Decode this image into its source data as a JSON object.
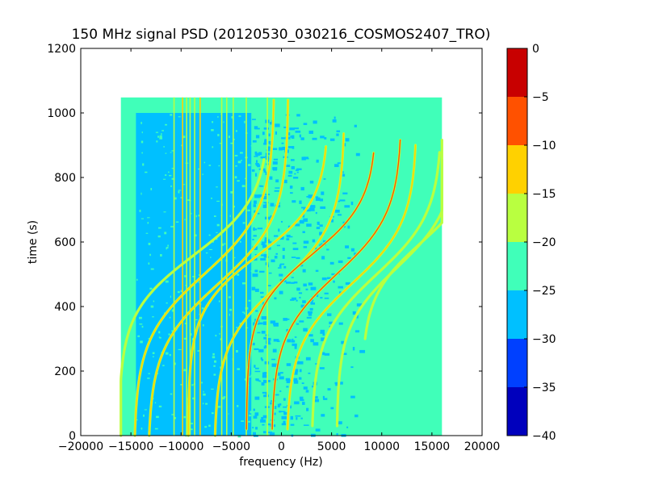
{
  "chart_data": {
    "type": "heatmap",
    "title": "150 MHz signal PSD (20120530_030216_COSMOS2407_TRO)",
    "xlabel": "frequency (Hz)",
    "ylabel": "time (s)",
    "xlim": [
      -20000,
      20000
    ],
    "ylim": [
      0,
      1200
    ],
    "x_ticks": [
      -20000,
      -15000,
      -10000,
      -5000,
      0,
      5000,
      10000,
      15000,
      20000
    ],
    "x_tick_labels": [
      "−20000",
      "−15000",
      "−10000",
      "−5000",
      "0",
      "5000",
      "10000",
      "15000",
      "20000"
    ],
    "y_ticks": [
      0,
      200,
      400,
      600,
      800,
      1000,
      1200
    ],
    "y_tick_labels": [
      "0",
      "200",
      "400",
      "600",
      "800",
      "1000",
      "1200"
    ],
    "data_extent": {
      "x": [
        -16000,
        16000
      ],
      "y": [
        0,
        1048
      ]
    },
    "background_level": -22.5,
    "noise_region": {
      "x_start": -14500,
      "x_fade_end": 3000,
      "y_top": 1000,
      "level": -27.5
    },
    "colorbar": {
      "levels": [
        -40,
        -35,
        -30,
        -25,
        -20,
        -15,
        -10,
        -5,
        0
      ],
      "tick_labels": [
        "−40",
        "−35",
        "−30",
        "−25",
        "−20",
        "−15",
        "−10",
        "−5",
        "0"
      ],
      "colors": [
        "#0000bd",
        "#0040ff",
        "#00c0ff",
        "#40ffb9",
        "#b9ff40",
        "#ffd100",
        "#ff5100",
        "#c80000"
      ]
    },
    "vertical_lines": [
      {
        "x": -10700,
        "level": -17.5
      },
      {
        "x": -9850,
        "level": -12.5
      },
      {
        "x": -9450,
        "level": -17.5
      },
      {
        "x": -9100,
        "level": -17.5
      },
      {
        "x": -8650,
        "level": -17.5
      },
      {
        "x": -8100,
        "level": -12.5
      },
      {
        "x": -5950,
        "level": -17.5
      },
      {
        "x": -5450,
        "level": -17.5
      },
      {
        "x": -4800,
        "level": -17.5
      },
      {
        "x": -3500,
        "level": -17.5
      },
      {
        "x": -1400,
        "level": -17.5
      }
    ],
    "doppler_tracks": [
      {
        "f0": -8700,
        "a": 7500,
        "t0": 560,
        "tau": 180,
        "y0": 0,
        "y1": 860,
        "level": -17.5
      },
      {
        "f0": -7700,
        "a": 7000,
        "t0": 500,
        "tau": 200,
        "y0": 0,
        "y1": 1040,
        "level": -12.5
      },
      {
        "f0": -6300,
        "a": 7000,
        "t0": 470,
        "tau": 200,
        "y0": 0,
        "y1": 1040,
        "level": -12.5
      },
      {
        "f0": -2300,
        "a": 7000,
        "t0": 560,
        "tau": 170,
        "y0": 0,
        "y1": 900,
        "level": -12.5
      },
      {
        "f0": -200,
        "a": 6500,
        "t0": 470,
        "tau": 190,
        "y0": 0,
        "y1": 940,
        "level": -12.5
      },
      {
        "f0": 3000,
        "a": 6500,
        "t0": 560,
        "tau": 170,
        "y0": 20,
        "y1": 880,
        "level": -7.5
      },
      {
        "f0": 5500,
        "a": 6500,
        "t0": 500,
        "tau": 190,
        "y0": 20,
        "y1": 920,
        "level": -7.5
      },
      {
        "f0": 7000,
        "a": 6500,
        "t0": 470,
        "tau": 190,
        "y0": 20,
        "y1": 900,
        "level": -12.5
      },
      {
        "f0": 9500,
        "a": 6500,
        "t0": 500,
        "tau": 190,
        "y0": 30,
        "y1": 880,
        "level": -17.5
      },
      {
        "f0": 11500,
        "a": 6000,
        "t0": 520,
        "tau": 180,
        "y0": 30,
        "y1": 860,
        "level": -17.5
      },
      {
        "f0": 14000,
        "a": 6000,
        "t0": 600,
        "tau": 170,
        "y0": 300,
        "y1": 920,
        "level": -17.5
      }
    ]
  }
}
